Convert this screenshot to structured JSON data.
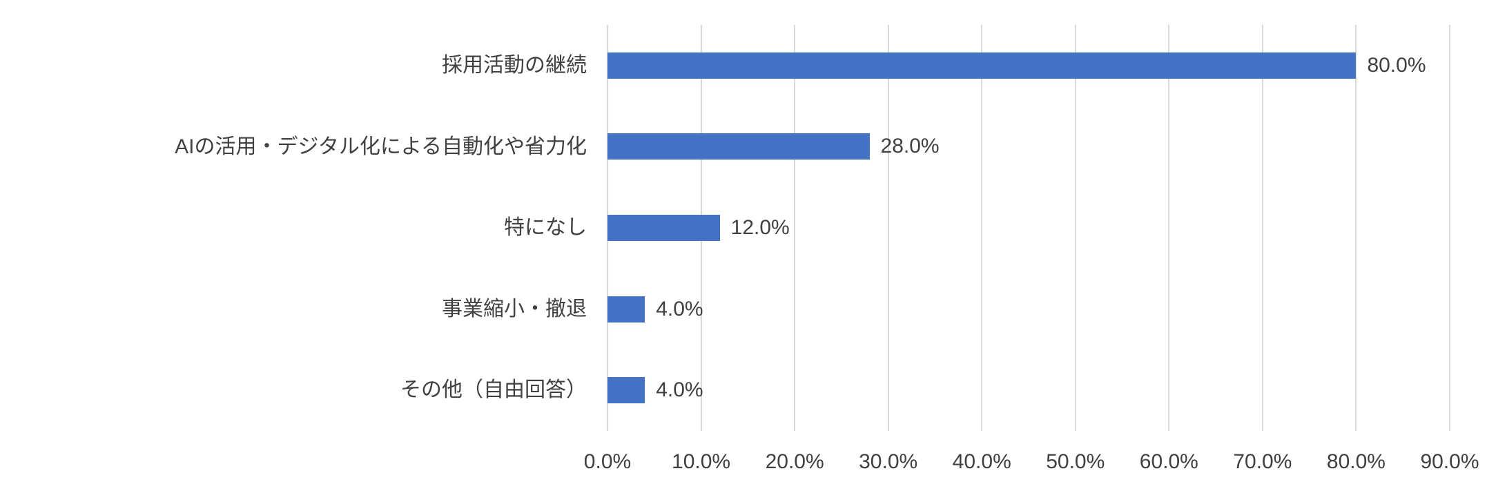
{
  "chart_data": {
    "type": "bar",
    "orientation": "horizontal",
    "title": "",
    "xlabel": "",
    "ylabel": "",
    "categories": [
      "採用活動の継続",
      "AIの活用・デジタル化による自動化や省力化",
      "特になし",
      "事業縮小・撤退",
      "その他（自由回答）"
    ],
    "values": [
      80.0,
      28.0,
      12.0,
      4.0,
      4.0
    ],
    "value_labels": [
      "80.0%",
      "28.0%",
      "12.0%",
      "4.0%",
      "4.0%"
    ],
    "x_ticks": [
      "0.0%",
      "10.0%",
      "20.0%",
      "30.0%",
      "40.0%",
      "50.0%",
      "60.0%",
      "70.0%",
      "80.0%",
      "90.0%"
    ],
    "xlim": [
      0,
      90
    ],
    "grid": "vertical-only",
    "legend": "none",
    "bar_color": "#4472C4",
    "gridline_color": "#D9D9D9",
    "text_color": "#404040",
    "background_color": "#FFFFFF"
  }
}
